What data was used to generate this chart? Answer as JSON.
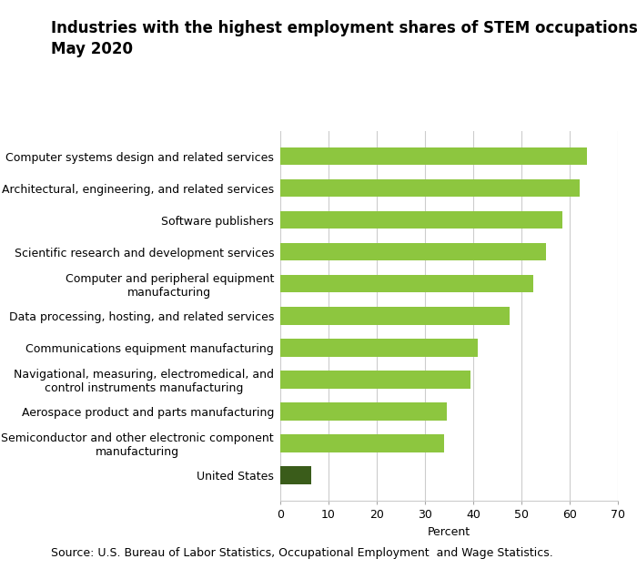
{
  "title_line1": "Industries with the highest employment shares of STEM occupations,",
  "title_line2": "May 2020",
  "categories": [
    "Computer systems design and related services",
    "Architectural, engineering, and related services",
    "Software publishers",
    "Scientific research and development services",
    "Computer and peripheral equipment\nmanufacturing",
    "Data processing, hosting, and related services",
    "Communications equipment manufacturing",
    "Navigational, measuring, electromedical, and\ncontrol instruments manufacturing",
    "Aerospace product and parts manufacturing",
    "Semiconductor and other electronic component\nmanufacturing",
    "United States"
  ],
  "values": [
    63.5,
    62.0,
    58.5,
    55.0,
    52.5,
    47.5,
    41.0,
    39.5,
    34.5,
    34.0,
    6.5
  ],
  "bar_colors": [
    "#8dc63f",
    "#8dc63f",
    "#8dc63f",
    "#8dc63f",
    "#8dc63f",
    "#8dc63f",
    "#8dc63f",
    "#8dc63f",
    "#8dc63f",
    "#8dc63f",
    "#3a5c1a"
  ],
  "xlabel": "Percent",
  "xlim": [
    0,
    70
  ],
  "xticks": [
    0,
    10,
    20,
    30,
    40,
    50,
    60,
    70
  ],
  "source_text": "Source: U.S. Bureau of Labor Statistics, Occupational Employment  and Wage Statistics.",
  "title_fontsize": 12,
  "label_fontsize": 9,
  "tick_fontsize": 9,
  "source_fontsize": 9,
  "background_color": "#ffffff",
  "grid_color": "#cccccc",
  "bar_height": 0.55
}
